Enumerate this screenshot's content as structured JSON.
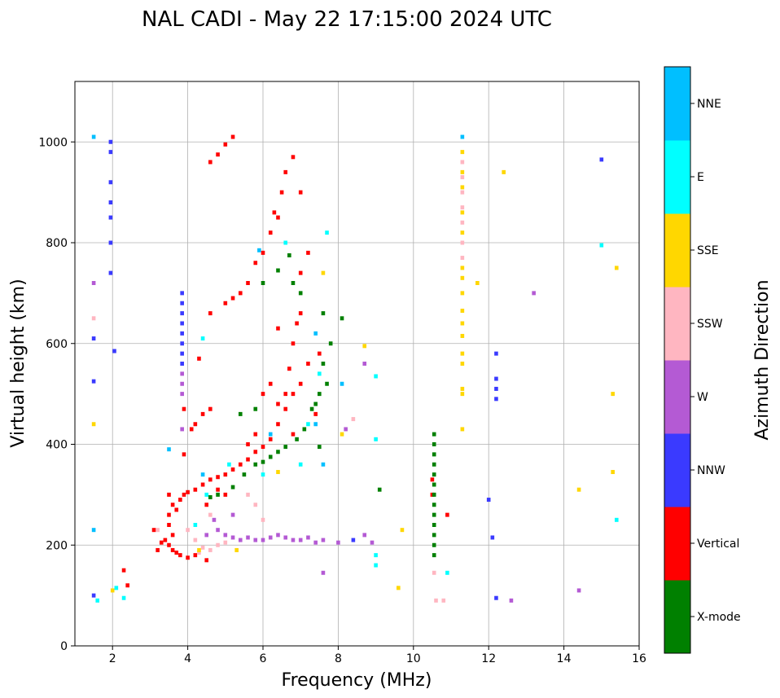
{
  "chart_data": {
    "type": "scatter",
    "title": "NAL CADI - May 22 17:15:00 2024 UTC",
    "xlabel": "Frequency (MHz)",
    "ylabel": "Virtual height (km)",
    "xlim": [
      1,
      16
    ],
    "ylim": [
      0,
      1120
    ],
    "x_ticks": [
      "2",
      "4",
      "6",
      "8",
      "10",
      "12",
      "14",
      "16"
    ],
    "y_ticks": [
      "0",
      "200",
      "400",
      "600",
      "800",
      "1000"
    ],
    "grid": true,
    "colorbar": {
      "label": "Azimuth Direction",
      "categories": [
        "X-mode",
        "Vertical",
        "NNW",
        "W",
        "SSW",
        "SSE",
        "E",
        "NNE"
      ],
      "colors": [
        "#008000",
        "#ff0000",
        "#3a3aff",
        "#b45ad4",
        "#ffb6c1",
        "#ffd700",
        "#00ffff",
        "#00bfff"
      ]
    },
    "point_format": [
      "frequency_MHz",
      "virtual_height_km",
      "category_index"
    ],
    "points": [
      [
        3.5,
        300,
        1
      ],
      [
        3.6,
        280,
        1
      ],
      [
        3.7,
        270,
        1
      ],
      [
        3.8,
        290,
        1
      ],
      [
        3.9,
        300,
        1
      ],
      [
        4.0,
        305,
        1
      ],
      [
        4.2,
        310,
        1
      ],
      [
        4.4,
        320,
        1
      ],
      [
        4.6,
        330,
        1
      ],
      [
        4.8,
        335,
        1
      ],
      [
        5.0,
        340,
        1
      ],
      [
        5.2,
        350,
        1
      ],
      [
        5.4,
        360,
        1
      ],
      [
        5.6,
        370,
        1
      ],
      [
        5.8,
        385,
        1
      ],
      [
        6.0,
        395,
        1
      ],
      [
        6.2,
        410,
        1
      ],
      [
        6.4,
        440,
        1
      ],
      [
        6.6,
        470,
        1
      ],
      [
        6.8,
        500,
        1
      ],
      [
        7.0,
        520,
        1
      ],
      [
        3.5,
        200,
        1
      ],
      [
        3.6,
        190,
        1
      ],
      [
        3.7,
        185,
        1
      ],
      [
        3.8,
        180,
        1
      ],
      [
        4.0,
        175,
        1
      ],
      [
        4.2,
        180,
        1
      ],
      [
        4.5,
        170,
        1
      ],
      [
        3.5,
        240,
        1
      ],
      [
        3.5,
        260,
        1
      ],
      [
        3.6,
        220,
        1
      ],
      [
        3.4,
        210,
        1
      ],
      [
        3.3,
        205,
        1
      ],
      [
        3.2,
        190,
        1
      ],
      [
        3.1,
        230,
        1
      ],
      [
        4.2,
        440,
        1
      ],
      [
        4.4,
        460,
        1
      ],
      [
        4.6,
        470,
        1
      ],
      [
        4.1,
        430,
        1
      ],
      [
        3.9,
        470,
        1
      ],
      [
        3.9,
        380,
        1
      ],
      [
        4.3,
        570,
        1
      ],
      [
        4.6,
        660,
        1
      ],
      [
        5.0,
        680,
        1
      ],
      [
        5.2,
        690,
        1
      ],
      [
        5.4,
        700,
        1
      ],
      [
        5.6,
        720,
        1
      ],
      [
        5.8,
        760,
        1
      ],
      [
        6.0,
        780,
        1
      ],
      [
        6.2,
        820,
        1
      ],
      [
        6.4,
        850,
        1
      ],
      [
        6.5,
        900,
        1
      ],
      [
        6.6,
        940,
        1
      ],
      [
        6.8,
        970,
        1
      ],
      [
        7.0,
        900,
        1
      ],
      [
        7.0,
        660,
        1
      ],
      [
        6.8,
        600,
        1
      ],
      [
        6.7,
        550,
        1
      ],
      [
        6.6,
        500,
        1
      ],
      [
        6.9,
        640,
        1
      ],
      [
        7.2,
        560,
        1
      ],
      [
        7.4,
        460,
        1
      ],
      [
        7.5,
        580,
        1
      ],
      [
        7.2,
        780,
        1
      ],
      [
        7.0,
        740,
        1
      ],
      [
        6.3,
        860,
        1
      ],
      [
        5.2,
        1010,
        1
      ],
      [
        5.0,
        995,
        1
      ],
      [
        4.8,
        975,
        1
      ],
      [
        4.6,
        960,
        1
      ],
      [
        6.4,
        480,
        1
      ],
      [
        6.2,
        520,
        1
      ],
      [
        6.0,
        500,
        1
      ],
      [
        5.8,
        420,
        1
      ],
      [
        5.6,
        400,
        1
      ],
      [
        2.4,
        120,
        1
      ],
      [
        2.3,
        150,
        1
      ],
      [
        10.5,
        330,
        1
      ],
      [
        10.5,
        300,
        1
      ],
      [
        10.9,
        260,
        1
      ],
      [
        6.4,
        630,
        1
      ],
      [
        6.8,
        420,
        1
      ],
      [
        5.0,
        300,
        1
      ],
      [
        4.8,
        310,
        1
      ],
      [
        4.5,
        280,
        1
      ],
      [
        4.6,
        295,
        0
      ],
      [
        4.8,
        300,
        0
      ],
      [
        5.2,
        315,
        0
      ],
      [
        5.5,
        340,
        0
      ],
      [
        5.8,
        360,
        0
      ],
      [
        6.0,
        365,
        0
      ],
      [
        6.2,
        375,
        0
      ],
      [
        6.4,
        385,
        0
      ],
      [
        6.6,
        395,
        0
      ],
      [
        6.9,
        410,
        0
      ],
      [
        7.1,
        430,
        0
      ],
      [
        7.3,
        470,
        0
      ],
      [
        7.5,
        500,
        0
      ],
      [
        7.7,
        520,
        0
      ],
      [
        7.6,
        560,
        0
      ],
      [
        7.8,
        600,
        0
      ],
      [
        8.1,
        650,
        0
      ],
      [
        7.6,
        660,
        0
      ],
      [
        6.4,
        745,
        0
      ],
      [
        6.7,
        775,
        0
      ],
      [
        6.8,
        720,
        0
      ],
      [
        7.0,
        700,
        0
      ],
      [
        5.8,
        470,
        0
      ],
      [
        5.4,
        460,
        0
      ],
      [
        7.4,
        480,
        0
      ],
      [
        10.55,
        420,
        0
      ],
      [
        10.55,
        400,
        0
      ],
      [
        10.55,
        380,
        0
      ],
      [
        10.55,
        360,
        0
      ],
      [
        10.55,
        340,
        0
      ],
      [
        10.55,
        320,
        0
      ],
      [
        10.55,
        300,
        0
      ],
      [
        10.55,
        280,
        0
      ],
      [
        10.55,
        260,
        0
      ],
      [
        10.55,
        240,
        0
      ],
      [
        10.55,
        220,
        0
      ],
      [
        10.55,
        200,
        0
      ],
      [
        10.55,
        180,
        0
      ],
      [
        9.1,
        310,
        0
      ],
      [
        6.0,
        720,
        0
      ],
      [
        7.5,
        395,
        0
      ],
      [
        1.95,
        1000,
        2
      ],
      [
        1.95,
        980,
        2
      ],
      [
        1.95,
        920,
        2
      ],
      [
        1.95,
        880,
        2
      ],
      [
        1.95,
        850,
        2
      ],
      [
        1.95,
        800,
        2
      ],
      [
        1.95,
        740,
        2
      ],
      [
        3.85,
        700,
        2
      ],
      [
        3.85,
        680,
        2
      ],
      [
        3.85,
        660,
        2
      ],
      [
        3.85,
        640,
        2
      ],
      [
        3.85,
        620,
        2
      ],
      [
        3.85,
        600,
        2
      ],
      [
        3.85,
        580,
        2
      ],
      [
        3.85,
        560,
        2
      ],
      [
        1.5,
        610,
        2
      ],
      [
        1.5,
        525,
        2
      ],
      [
        2.05,
        585,
        2
      ],
      [
        12.2,
        580,
        2
      ],
      [
        12.2,
        530,
        2
      ],
      [
        12.2,
        510,
        2
      ],
      [
        12.2,
        490,
        2
      ],
      [
        15.0,
        965,
        2
      ],
      [
        8.4,
        210,
        2
      ],
      [
        1.5,
        100,
        2
      ],
      [
        12.2,
        95,
        2
      ],
      [
        12.0,
        290,
        2
      ],
      [
        12.1,
        215,
        2
      ],
      [
        3.85,
        540,
        3
      ],
      [
        3.85,
        520,
        3
      ],
      [
        3.85,
        500,
        3
      ],
      [
        3.85,
        430,
        3
      ],
      [
        4.5,
        220,
        3
      ],
      [
        4.8,
        230,
        3
      ],
      [
        5.0,
        220,
        3
      ],
      [
        5.2,
        215,
        3
      ],
      [
        5.4,
        210,
        3
      ],
      [
        5.6,
        215,
        3
      ],
      [
        5.8,
        210,
        3
      ],
      [
        6.0,
        210,
        3
      ],
      [
        6.2,
        215,
        3
      ],
      [
        6.4,
        220,
        3
      ],
      [
        6.6,
        215,
        3
      ],
      [
        6.8,
        210,
        3
      ],
      [
        7.0,
        210,
        3
      ],
      [
        7.2,
        215,
        3
      ],
      [
        7.4,
        205,
        3
      ],
      [
        7.6,
        210,
        3
      ],
      [
        8.0,
        205,
        3
      ],
      [
        8.9,
        205,
        3
      ],
      [
        4.7,
        250,
        3
      ],
      [
        5.2,
        260,
        3
      ],
      [
        8.7,
        220,
        3
      ],
      [
        8.7,
        560,
        3
      ],
      [
        8.2,
        430,
        3
      ],
      [
        13.2,
        700,
        3
      ],
      [
        14.4,
        110,
        3
      ],
      [
        12.6,
        90,
        3
      ],
      [
        7.6,
        145,
        3
      ],
      [
        1.5,
        720,
        3
      ],
      [
        4.0,
        230,
        4
      ],
      [
        4.2,
        210,
        4
      ],
      [
        4.4,
        195,
        4
      ],
      [
        4.6,
        190,
        4
      ],
      [
        4.8,
        200,
        4
      ],
      [
        5.0,
        205,
        4
      ],
      [
        4.3,
        185,
        4
      ],
      [
        4.6,
        260,
        4
      ],
      [
        5.6,
        300,
        4
      ],
      [
        5.8,
        280,
        4
      ],
      [
        6.0,
        250,
        4
      ],
      [
        8.4,
        450,
        4
      ],
      [
        11.3,
        960,
        4
      ],
      [
        11.3,
        930,
        4
      ],
      [
        11.3,
        900,
        4
      ],
      [
        11.3,
        870,
        4
      ],
      [
        11.3,
        840,
        4
      ],
      [
        11.3,
        800,
        4
      ],
      [
        11.3,
        770,
        4
      ],
      [
        10.55,
        145,
        4
      ],
      [
        10.8,
        90,
        4
      ],
      [
        10.6,
        90,
        4
      ],
      [
        3.2,
        230,
        4
      ],
      [
        1.5,
        650,
        4
      ],
      [
        11.3,
        980,
        5
      ],
      [
        11.3,
        940,
        5
      ],
      [
        11.3,
        910,
        5
      ],
      [
        11.3,
        860,
        5
      ],
      [
        11.3,
        820,
        5
      ],
      [
        11.3,
        750,
        5
      ],
      [
        11.3,
        730,
        5
      ],
      [
        11.3,
        700,
        5
      ],
      [
        11.3,
        665,
        5
      ],
      [
        11.3,
        640,
        5
      ],
      [
        11.3,
        615,
        5
      ],
      [
        11.3,
        580,
        5
      ],
      [
        11.3,
        560,
        5
      ],
      [
        11.3,
        510,
        5
      ],
      [
        11.3,
        500,
        5
      ],
      [
        11.3,
        430,
        5
      ],
      [
        11.7,
        720,
        5
      ],
      [
        12.4,
        940,
        5
      ],
      [
        15.4,
        750,
        5
      ],
      [
        15.3,
        500,
        5
      ],
      [
        15.3,
        345,
        5
      ],
      [
        14.4,
        310,
        5
      ],
      [
        8.1,
        420,
        5
      ],
      [
        8.7,
        595,
        5
      ],
      [
        4.3,
        190,
        5
      ],
      [
        5.3,
        190,
        5
      ],
      [
        2.0,
        110,
        5
      ],
      [
        1.5,
        440,
        5
      ],
      [
        9.7,
        230,
        5
      ],
      [
        9.6,
        115,
        5
      ],
      [
        6.4,
        345,
        5
      ],
      [
        7.6,
        740,
        5
      ],
      [
        2.1,
        115,
        6
      ],
      [
        2.3,
        95,
        6
      ],
      [
        1.6,
        90,
        6
      ],
      [
        4.5,
        300,
        6
      ],
      [
        5.1,
        360,
        6
      ],
      [
        6.0,
        340,
        6
      ],
      [
        7.2,
        440,
        6
      ],
      [
        7.5,
        540,
        6
      ],
      [
        7.0,
        360,
        6
      ],
      [
        9.0,
        410,
        6
      ],
      [
        9.0,
        180,
        6
      ],
      [
        9.0,
        160,
        6
      ],
      [
        15.0,
        795,
        6
      ],
      [
        15.4,
        250,
        6
      ],
      [
        10.9,
        145,
        6
      ],
      [
        4.4,
        610,
        6
      ],
      [
        4.2,
        240,
        6
      ],
      [
        7.7,
        820,
        6
      ],
      [
        9.0,
        535,
        6
      ],
      [
        6.6,
        800,
        6
      ],
      [
        1.5,
        1010,
        7
      ],
      [
        5.9,
        785,
        7
      ],
      [
        4.4,
        340,
        7
      ],
      [
        6.2,
        420,
        7
      ],
      [
        7.4,
        620,
        7
      ],
      [
        11.3,
        1010,
        7
      ],
      [
        8.1,
        520,
        7
      ],
      [
        7.6,
        360,
        7
      ],
      [
        1.5,
        230,
        7
      ],
      [
        3.5,
        390,
        7
      ],
      [
        7.4,
        440,
        7
      ]
    ]
  }
}
